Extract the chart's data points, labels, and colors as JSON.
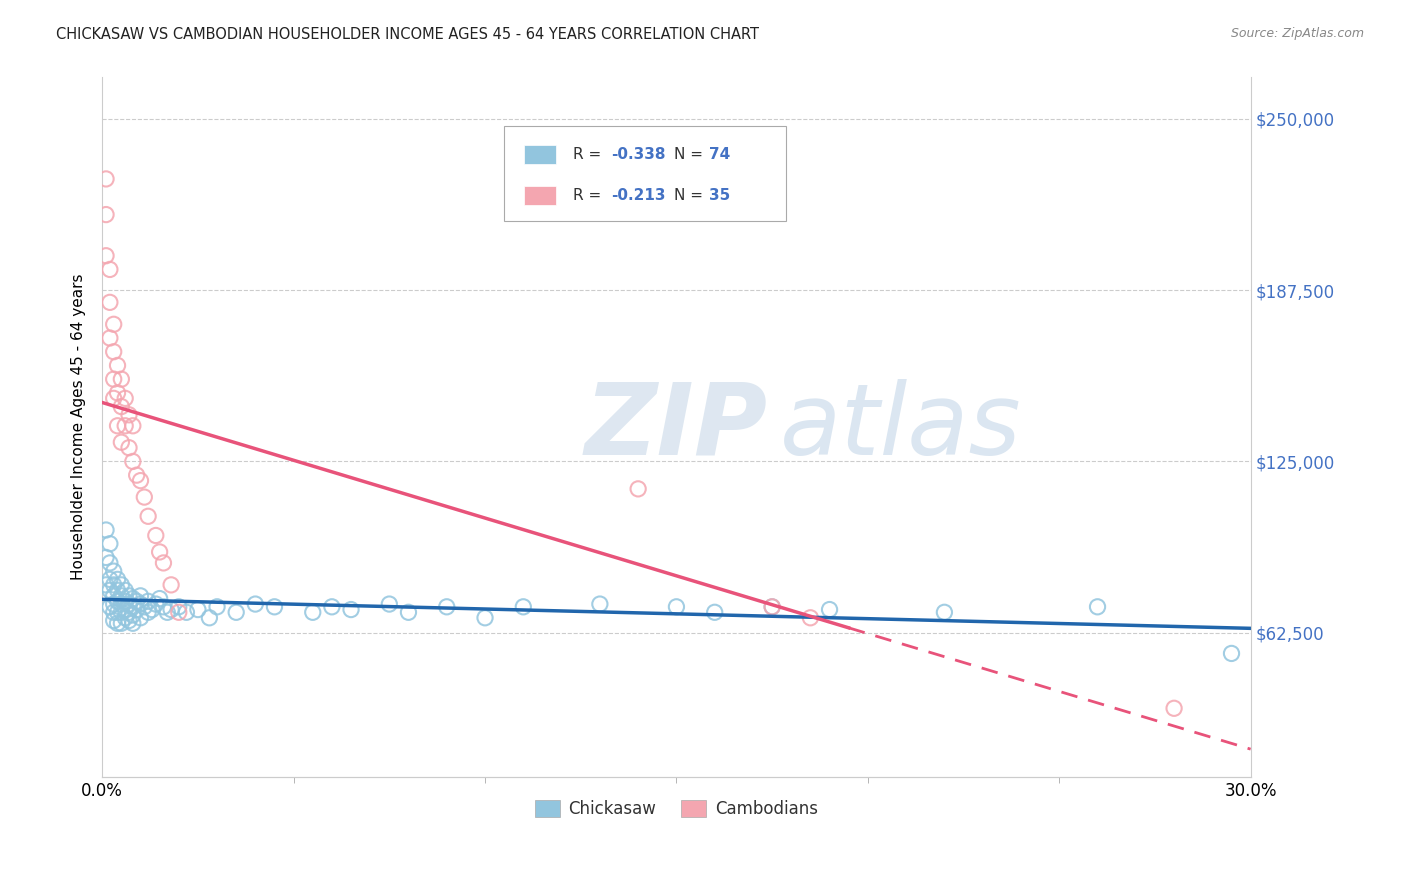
{
  "title": "CHICKASAW VS CAMBODIAN HOUSEHOLDER INCOME AGES 45 - 64 YEARS CORRELATION CHART",
  "source": "Source: ZipAtlas.com",
  "ylabel": "Householder Income Ages 45 - 64 years",
  "ytick_labels": [
    "$62,500",
    "$125,000",
    "$187,500",
    "$250,000"
  ],
  "ytick_values": [
    62500,
    125000,
    187500,
    250000
  ],
  "xmin": 0.0,
  "xmax": 0.3,
  "ymin": 10000,
  "ymax": 265000,
  "chickasaw_color": "#92c5de",
  "cambodian_color": "#f4a6b0",
  "chickasaw_line_color": "#2166ac",
  "cambodian_line_color": "#e8537a",
  "chickasaw_R": -0.338,
  "chickasaw_N": 74,
  "cambodian_R": -0.213,
  "cambodian_N": 35,
  "watermark_zip": "ZIP",
  "watermark_atlas": "atlas",
  "legend_label1": "R = ",
  "legend_val1": "-0.338",
  "legend_n1": "N = ",
  "legend_nval1": "74",
  "legend_label2": "R = ",
  "legend_val2": "-0.213",
  "legend_n2": "N = ",
  "legend_nval2": "35",
  "bottom_label1": "Chickasaw",
  "bottom_label2": "Cambodians",
  "chickasaw_x": [
    0.001,
    0.001,
    0.001,
    0.002,
    0.002,
    0.002,
    0.002,
    0.002,
    0.003,
    0.003,
    0.003,
    0.003,
    0.003,
    0.003,
    0.004,
    0.004,
    0.004,
    0.004,
    0.004,
    0.005,
    0.005,
    0.005,
    0.005,
    0.005,
    0.006,
    0.006,
    0.006,
    0.006,
    0.007,
    0.007,
    0.007,
    0.007,
    0.008,
    0.008,
    0.008,
    0.008,
    0.009,
    0.009,
    0.01,
    0.01,
    0.01,
    0.011,
    0.012,
    0.012,
    0.013,
    0.014,
    0.015,
    0.016,
    0.017,
    0.018,
    0.02,
    0.022,
    0.025,
    0.028,
    0.03,
    0.035,
    0.04,
    0.045,
    0.055,
    0.06,
    0.065,
    0.075,
    0.08,
    0.09,
    0.1,
    0.11,
    0.13,
    0.15,
    0.16,
    0.175,
    0.19,
    0.22,
    0.26,
    0.295
  ],
  "chickasaw_y": [
    100000,
    90000,
    80000,
    95000,
    88000,
    82000,
    78000,
    72000,
    85000,
    80000,
    76000,
    73000,
    70000,
    67000,
    82000,
    78000,
    74000,
    70000,
    66000,
    80000,
    76000,
    73000,
    70000,
    66000,
    78000,
    74000,
    71000,
    68000,
    76000,
    73000,
    70000,
    67000,
    75000,
    72000,
    69000,
    66000,
    74000,
    71000,
    76000,
    73000,
    68000,
    72000,
    74000,
    70000,
    71000,
    73000,
    75000,
    72000,
    70000,
    71000,
    72000,
    70000,
    71000,
    68000,
    72000,
    70000,
    73000,
    72000,
    70000,
    72000,
    71000,
    73000,
    70000,
    72000,
    68000,
    72000,
    73000,
    72000,
    70000,
    72000,
    71000,
    70000,
    72000,
    55000
  ],
  "cambodian_x": [
    0.001,
    0.001,
    0.001,
    0.002,
    0.002,
    0.002,
    0.003,
    0.003,
    0.003,
    0.003,
    0.004,
    0.004,
    0.004,
    0.005,
    0.005,
    0.005,
    0.006,
    0.006,
    0.007,
    0.007,
    0.008,
    0.008,
    0.009,
    0.01,
    0.011,
    0.012,
    0.014,
    0.015,
    0.016,
    0.018,
    0.02,
    0.14,
    0.175,
    0.185,
    0.28
  ],
  "cambodian_y": [
    228000,
    215000,
    200000,
    195000,
    183000,
    170000,
    175000,
    165000,
    155000,
    148000,
    160000,
    150000,
    138000,
    155000,
    145000,
    132000,
    148000,
    138000,
    142000,
    130000,
    138000,
    125000,
    120000,
    118000,
    112000,
    105000,
    98000,
    92000,
    88000,
    80000,
    70000,
    115000,
    72000,
    68000,
    35000
  ]
}
